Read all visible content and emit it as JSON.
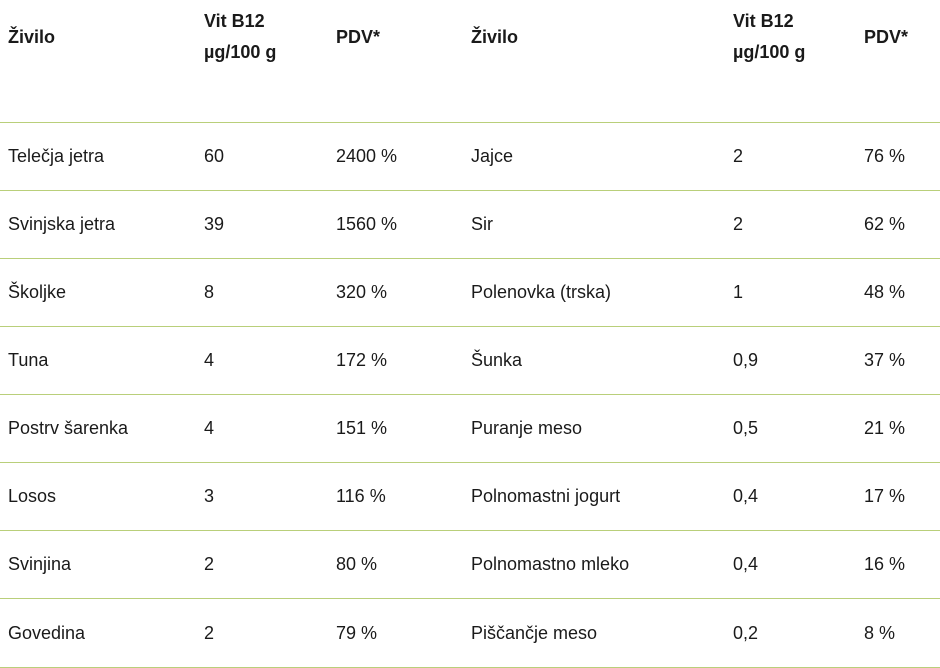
{
  "headers": {
    "food": "Živilo",
    "vit_line1": "Vit B12",
    "vit_line2": "µg/100 g",
    "pdv": "PDV*"
  },
  "rows": [
    {
      "food_left": "Telečja jetra",
      "vit_left": "60",
      "pdv_left": "2400 %",
      "food_right": "Jajce",
      "vit_right": "2",
      "pdv_right": "76 %"
    },
    {
      "food_left": "Svinjska jetra",
      "vit_left": "39",
      "pdv_left": "1560 %",
      "food_right": "Sir",
      "vit_right": "2",
      "pdv_right": "62 %"
    },
    {
      "food_left": "Školjke",
      "vit_left": "8",
      "pdv_left": "320 %",
      "food_right": "Polenovka (trska)",
      "vit_right": "1",
      "pdv_right": "48 %"
    },
    {
      "food_left": "Tuna",
      "vit_left": "4",
      "pdv_left": "172 %",
      "food_right": "Šunka",
      "vit_right": "0,9",
      "pdv_right": "37 %"
    },
    {
      "food_left": "Postrv šarenka",
      "vit_left": "4",
      "pdv_left": "151 %",
      "food_right": "Puranje meso",
      "vit_right": "0,5",
      "pdv_right": "21 %"
    },
    {
      "food_left": "Losos",
      "vit_left": "3",
      "pdv_left": "116 %",
      "food_right": "Polnomastni jogurt",
      "vit_right": "0,4",
      "pdv_right": "17 %"
    },
    {
      "food_left": "Svinjina",
      "vit_left": "2",
      "pdv_left": "80 %",
      "food_right": "Polnomastno mleko",
      "vit_right": "0,4",
      "pdv_right": "16 %"
    },
    {
      "food_left": "Govedina",
      "vit_left": "2",
      "pdv_left": "79 %",
      "food_right": "Piščančje meso",
      "vit_right": "0,2",
      "pdv_right": "8 %"
    }
  ],
  "colors": {
    "rule": "#b9cf7a",
    "text": "#1a1a1a"
  }
}
